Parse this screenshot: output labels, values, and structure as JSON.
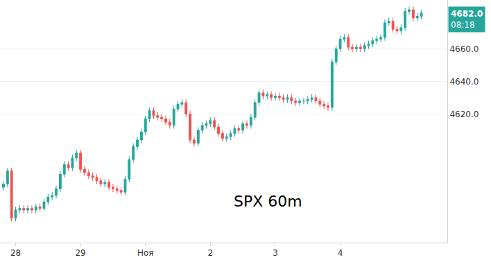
{
  "chart_data": {
    "type": "candlestick",
    "title": "SPX 60m",
    "categories": [
      null,
      null,
      null,
      "28",
      null,
      null,
      null,
      null,
      null,
      null,
      null,
      null,
      null,
      null,
      null,
      null,
      null,
      null,
      null,
      "29",
      null,
      null,
      null,
      null,
      null,
      null,
      null,
      null,
      null,
      null,
      null,
      null,
      null,
      null,
      null,
      "Ноя",
      null,
      null,
      null,
      null,
      null,
      null,
      null,
      null,
      null,
      null,
      null,
      null,
      null,
      null,
      null,
      "2",
      null,
      null,
      null,
      null,
      null,
      null,
      null,
      null,
      null,
      null,
      null,
      null,
      null,
      null,
      null,
      "3",
      null,
      null,
      null,
      null,
      null,
      null,
      null,
      null,
      null,
      null,
      null,
      null,
      null,
      null,
      null,
      "4",
      null,
      null,
      null,
      null,
      null,
      null,
      null,
      null,
      null,
      null,
      null,
      null,
      null,
      null,
      null,
      null,
      null,
      null,
      null,
      null
    ],
    "open": [
      4575,
      4577,
      4585,
      4556,
      4561,
      4562,
      4561,
      4562,
      4561,
      4563,
      4562,
      4566,
      4569,
      4570,
      4574,
      4583,
      4589,
      4587,
      4593,
      4596,
      4586,
      4584,
      4582,
      4581,
      4579,
      4577,
      4578,
      4575,
      4574,
      4573,
      4572,
      4580,
      4592,
      4600,
      4604,
      4609,
      4617,
      4622,
      4619,
      4618,
      4617,
      4615,
      4613,
      4623,
      4626,
      4627,
      4620,
      4604,
      4602,
      4610,
      4613,
      4614,
      4616,
      4612,
      4608,
      4605,
      4606,
      4608,
      4611,
      4610,
      4614,
      4613,
      4618,
      4627,
      4633,
      4631,
      4632,
      4630,
      4631,
      4630,
      4629,
      4630,
      4628,
      4627,
      4628,
      4628,
      4629,
      4630,
      4628,
      4626,
      4625,
      4624,
      4652,
      4660,
      4666,
      4667,
      4661,
      4660,
      4661,
      4660,
      4662,
      4663,
      4665,
      4666,
      4667,
      4676,
      4677,
      4672,
      4671,
      4673,
      4683,
      4684,
      4679,
      4680
    ],
    "high": [
      4579,
      4587,
      4587,
      4563,
      4564,
      4564,
      4564,
      4564,
      4565,
      4565,
      4568,
      4571,
      4572,
      4576,
      4585,
      4591,
      4591,
      4595,
      4598,
      4598,
      4588,
      4586,
      4584,
      4583,
      4581,
      4580,
      4580,
      4577,
      4576,
      4575,
      4582,
      4594,
      4602,
      4606,
      4611,
      4619,
      4624,
      4624,
      4621,
      4620,
      4619,
      4617,
      4625,
      4628,
      4629,
      4629,
      4622,
      4606,
      4612,
      4615,
      4616,
      4618,
      4618,
      4614,
      4610,
      4608,
      4610,
      4613,
      4613,
      4616,
      4616,
      4620,
      4629,
      4635,
      4635,
      4634,
      4634,
      4633,
      4633,
      4632,
      4632,
      4632,
      4630,
      4630,
      4630,
      4631,
      4632,
      4632,
      4630,
      4628,
      4627,
      4654,
      4662,
      4668,
      4669,
      4669,
      4663,
      4663,
      4663,
      4664,
      4665,
      4667,
      4668,
      4669,
      4678,
      4679,
      4679,
      4674,
      4675,
      4685,
      4686,
      4686,
      4682,
      4684
    ],
    "low": [
      4573,
      4575,
      4554,
      4554,
      4559,
      4559,
      4559,
      4559,
      4559,
      4560,
      4560,
      4564,
      4567,
      4568,
      4572,
      4581,
      4585,
      4585,
      4591,
      4584,
      4582,
      4580,
      4579,
      4577,
      4575,
      4575,
      4573,
      4572,
      4571,
      4570,
      4570,
      4578,
      4590,
      4598,
      4602,
      4607,
      4615,
      4617,
      4616,
      4615,
      4613,
      4611,
      4611,
      4621,
      4624,
      4618,
      4602,
      4600,
      4600,
      4608,
      4611,
      4612,
      4610,
      4606,
      4603,
      4603,
      4604,
      4606,
      4608,
      4608,
      4611,
      4611,
      4616,
      4625,
      4629,
      4629,
      4628,
      4628,
      4628,
      4627,
      4627,
      4626,
      4625,
      4625,
      4626,
      4626,
      4627,
      4626,
      4624,
      4623,
      4622,
      4622,
      4650,
      4658,
      4664,
      4659,
      4658,
      4658,
      4658,
      4658,
      4660,
      4661,
      4663,
      4664,
      4665,
      4674,
      4670,
      4669,
      4669,
      4671,
      4681,
      4677,
      4677,
      4678
    ],
    "close": [
      4577,
      4585,
      4556,
      4561,
      4562,
      4561,
      4562,
      4561,
      4563,
      4562,
      4566,
      4569,
      4570,
      4574,
      4583,
      4589,
      4587,
      4593,
      4596,
      4586,
      4584,
      4582,
      4581,
      4579,
      4577,
      4578,
      4575,
      4574,
      4573,
      4572,
      4580,
      4592,
      4600,
      4604,
      4609,
      4617,
      4622,
      4619,
      4618,
      4617,
      4615,
      4613,
      4623,
      4626,
      4627,
      4620,
      4604,
      4602,
      4610,
      4613,
      4614,
      4616,
      4612,
      4608,
      4605,
      4606,
      4608,
      4611,
      4610,
      4614,
      4613,
      4618,
      4627,
      4633,
      4631,
      4632,
      4630,
      4631,
      4630,
      4629,
      4630,
      4628,
      4627,
      4628,
      4628,
      4629,
      4630,
      4628,
      4626,
      4625,
      4624,
      4652,
      4660,
      4666,
      4667,
      4661,
      4660,
      4661,
      4660,
      4662,
      4663,
      4665,
      4666,
      4667,
      4676,
      4677,
      4672,
      4671,
      4673,
      4683,
      4684,
      4679,
      4680,
      4682
    ],
    "color": {
      "up": "#26a69a",
      "down": "#ef5350"
    },
    "price_label": {
      "value": 4682.0,
      "label": "4682.0",
      "timer": "08:18"
    },
    "ylim": [
      4541,
      4690
    ],
    "yticks": [
      4620,
      4640,
      4660
    ],
    "grid": true
  }
}
